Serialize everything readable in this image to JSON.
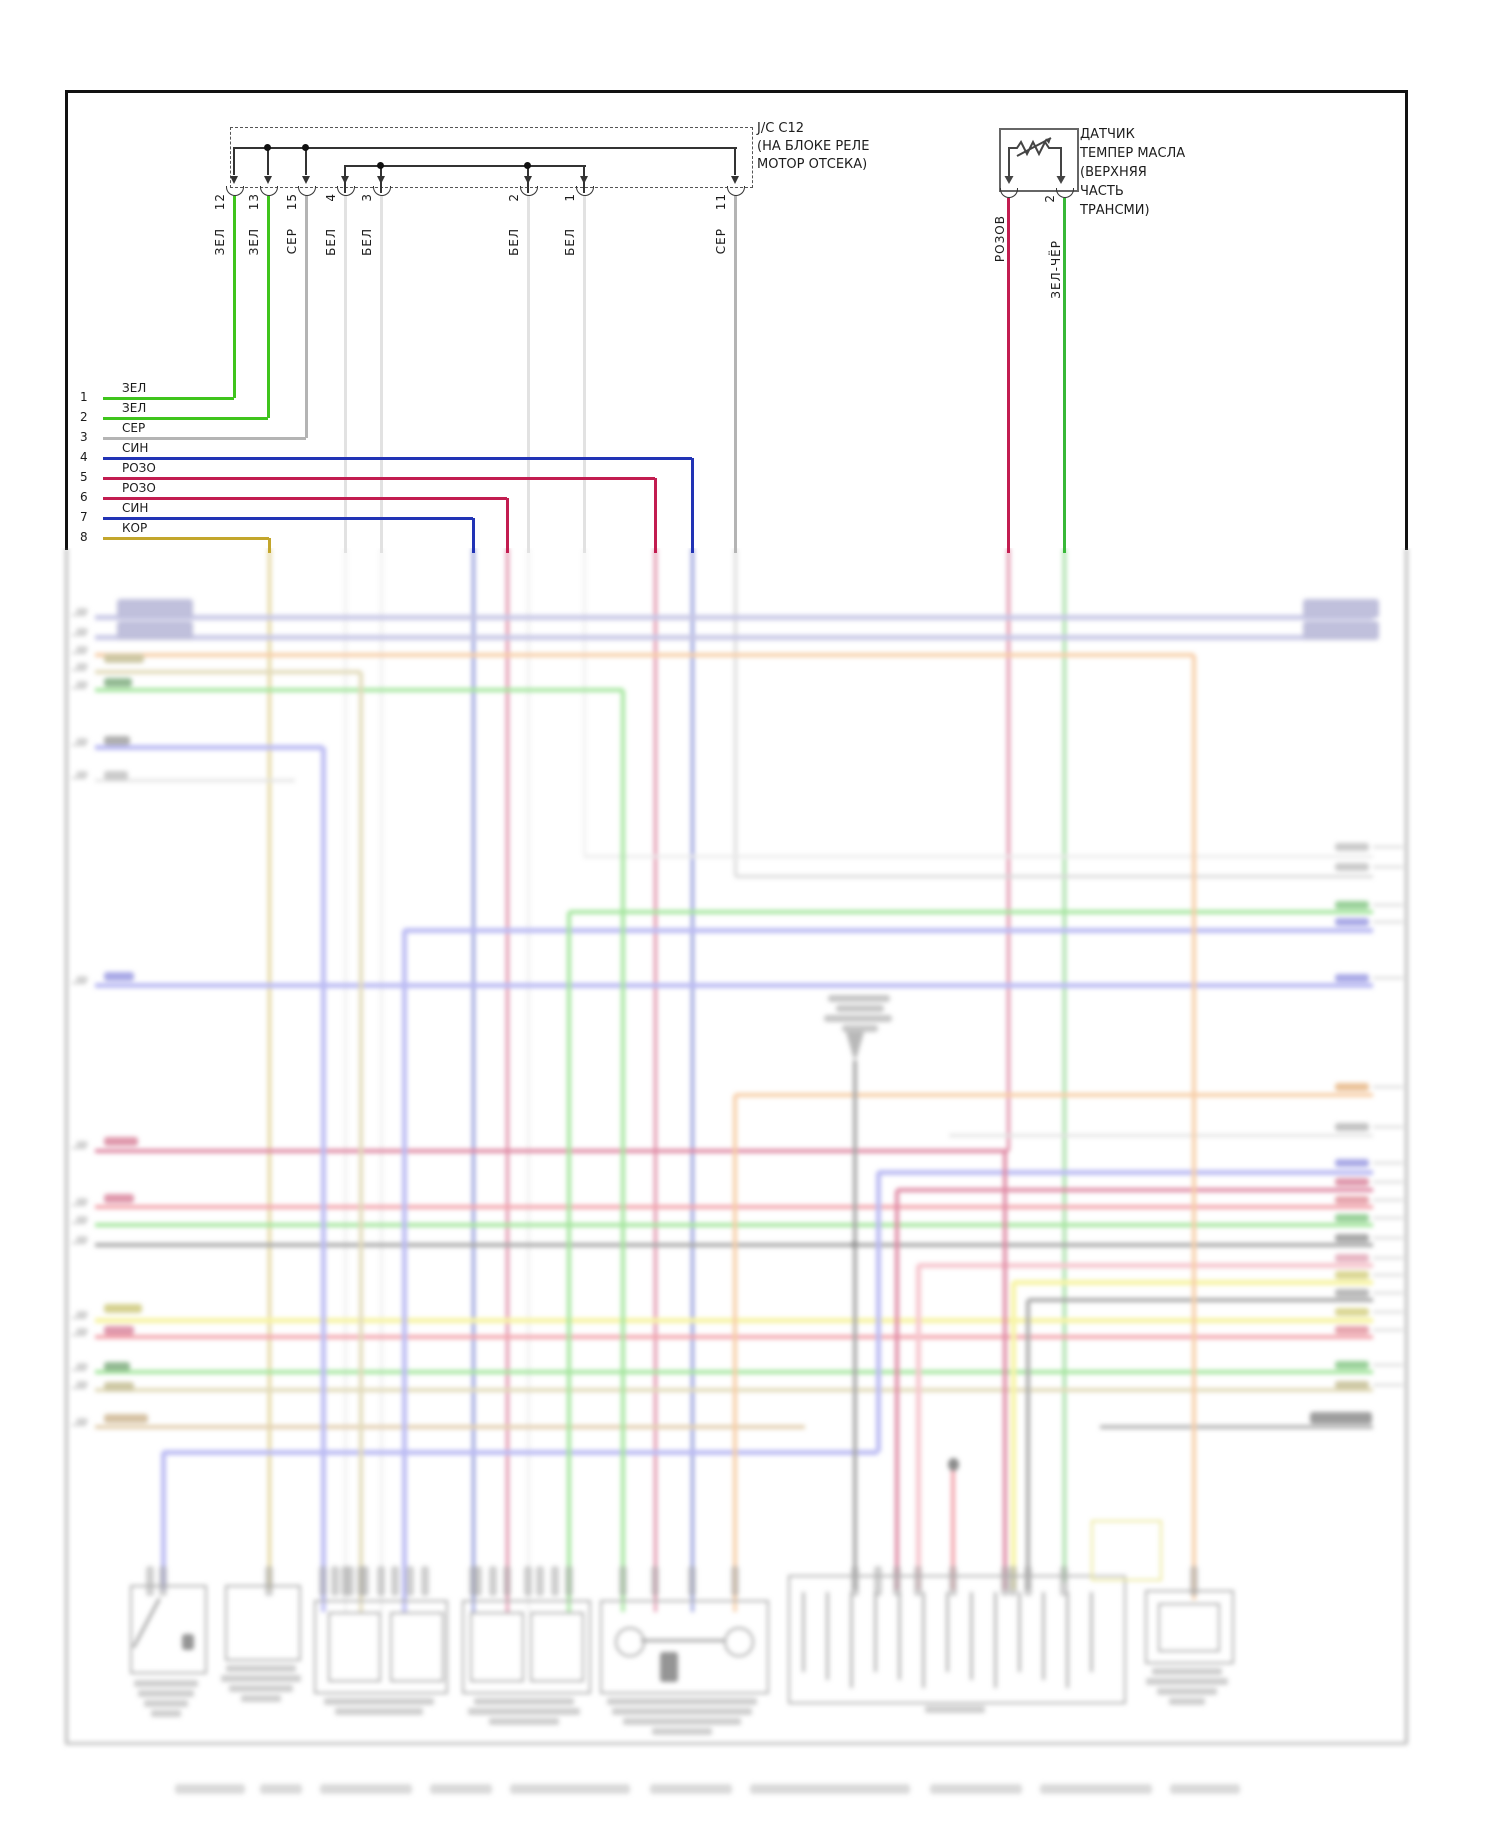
{
  "junction": {
    "label_lines": [
      "J/C C12",
      "(НА БЛОКЕ РЕЛЕ",
      "МОТОР ОТСЕКА)"
    ],
    "pins": [
      {
        "number": "12",
        "wire_color_label": "ЗЕЛ"
      },
      {
        "number": "13",
        "wire_color_label": "ЗЕЛ"
      },
      {
        "number": "15",
        "wire_color_label": "СЕР"
      },
      {
        "number": "4",
        "wire_color_label": "БЕЛ"
      },
      {
        "number": "3",
        "wire_color_label": "БЕЛ"
      },
      {
        "number": "2",
        "wire_color_label": "БЕЛ"
      },
      {
        "number": "1",
        "wire_color_label": "БЕЛ"
      },
      {
        "number": "11",
        "wire_color_label": "СЕР"
      }
    ]
  },
  "sensor": {
    "label_lines": [
      "ДАТЧИК",
      "ТЕМПЕР МАСЛА",
      "(ВЕРХНЯЯ",
      "ЧАСТЬ",
      "ТРАНСМИ)"
    ],
    "pins": [
      {
        "number": "",
        "wire_color_label": "РОЗОВ"
      },
      {
        "number": "2",
        "wire_color_label": "ЗЕЛ-ЧЁР"
      }
    ]
  },
  "left_wire_list": [
    {
      "number": "1",
      "color_label": "ЗЕЛ"
    },
    {
      "number": "2",
      "color_label": "ЗЕЛ"
    },
    {
      "number": "3",
      "color_label": "СЕР"
    },
    {
      "number": "4",
      "color_label": "СИН"
    },
    {
      "number": "5",
      "color_label": "РОЗО"
    },
    {
      "number": "6",
      "color_label": "РОЗО"
    },
    {
      "number": "7",
      "color_label": "СИН"
    },
    {
      "number": "8",
      "color_label": "КОР"
    }
  ],
  "colors": {
    "line_black": "#222222",
    "green": "#3fc41d",
    "green2": "#4fcf42",
    "gray": "#b4b4b4",
    "lgray": "#c9c9c9",
    "white_wire": "#e2e2e2",
    "blue": "#2133b5",
    "crimson": "#c21d50",
    "olive": "#c3a62c",
    "olive_tan": "#c6b878",
    "lavender": "#9494cf",
    "orange": "#f0a055",
    "periwinkle": "#7d7de8",
    "red": "#e85262",
    "pink": "#ef93a2",
    "yellow": "#efe94e",
    "tan": "#c9a468",
    "dgray": "#5a5a5a",
    "border": "#111111"
  }
}
